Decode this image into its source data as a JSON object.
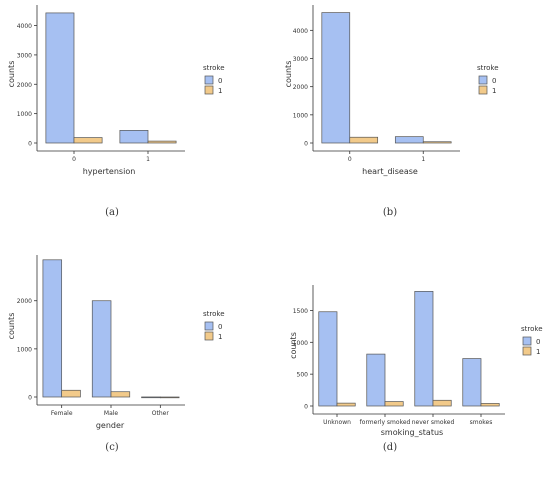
{
  "chart_data": [
    {
      "type": "bar",
      "caption": "(a)",
      "xlabel": "hypertension",
      "ylabel": "counts",
      "categories": [
        "0",
        "1"
      ],
      "yticks": [
        0,
        1000,
        2000,
        3000,
        4000
      ],
      "ylim": [
        0,
        4700
      ],
      "legend": {
        "title": "stroke",
        "placement": "right"
      },
      "series": [
        {
          "name": "0",
          "values": [
            4430,
            430
          ]
        },
        {
          "name": "1",
          "values": [
            185,
            65
          ]
        }
      ]
    },
    {
      "type": "bar",
      "caption": "(b)",
      "xlabel": "heart_disease",
      "ylabel": "counts",
      "categories": [
        "0",
        "1"
      ],
      "yticks": [
        0,
        1000,
        2000,
        3000,
        4000
      ],
      "ylim": [
        0,
        4900
      ],
      "legend": {
        "title": "stroke",
        "placement": "right"
      },
      "series": [
        {
          "name": "0",
          "values": [
            4630,
            225
          ]
        },
        {
          "name": "1",
          "values": [
            205,
            45
          ]
        }
      ]
    },
    {
      "type": "bar",
      "caption": "(c)",
      "xlabel": "gender",
      "ylabel": "counts",
      "categories": [
        "Female",
        "Male",
        "Other"
      ],
      "yticks": [
        0,
        1000,
        2000
      ],
      "ylim": [
        0,
        2950
      ],
      "legend": {
        "title": "stroke",
        "placement": "right"
      },
      "series": [
        {
          "name": "0",
          "values": [
            2850,
            2000,
            1
          ]
        },
        {
          "name": "1",
          "values": [
            140,
            110,
            0
          ]
        }
      ]
    },
    {
      "type": "bar",
      "caption": "(d)",
      "xlabel": "smoking_status",
      "ylabel": "counts",
      "categories": [
        "Unknown",
        "formerly smoked",
        "never smoked",
        "smokes"
      ],
      "yticks": [
        0,
        500,
        1000,
        1500
      ],
      "ylim": [
        0,
        1900
      ],
      "legend": {
        "title": "stroke",
        "placement": "right"
      },
      "series": [
        {
          "name": "0",
          "values": [
            1480,
            815,
            1800,
            745
          ]
        },
        {
          "name": "1",
          "values": [
            45,
            70,
            90,
            40
          ]
        }
      ]
    }
  ],
  "colors": {
    "series0": "#a6c0f2",
    "series1": "#f2ca8a",
    "edge": "#555555"
  }
}
